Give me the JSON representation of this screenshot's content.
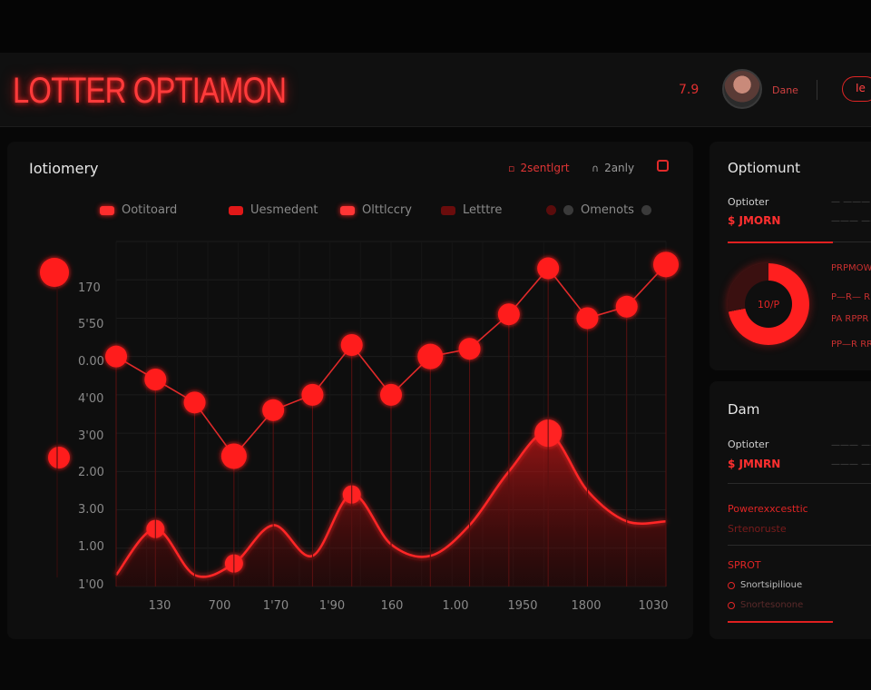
{
  "header": {
    "title": "LOTTER OPTIAMON",
    "count": "7.9",
    "user": "Dane",
    "action": "Ie"
  },
  "chart_panel": {
    "title": "Iotiomery",
    "controls": {
      "range_label": "2sentlgrt",
      "view_label": "2anly"
    }
  },
  "colors": {
    "accent": "#ff2a2a",
    "background": "#070707",
    "panel": "#0e0e0e",
    "muted": "#8a8a8a"
  },
  "chart_data": {
    "type": "line",
    "legend": [
      "Ootitoard",
      "Uesmedent",
      "Olttlccry",
      "Letttre",
      "Omenots"
    ],
    "y_ticks": [
      "170",
      "5'50",
      "0.00",
      "4'00",
      "3'00",
      "2.00",
      "3.00",
      "1.00",
      "1'00"
    ],
    "x_ticks": [
      "130",
      "700",
      "1'70",
      "1'90",
      "160",
      "1.00",
      "1950",
      "1800",
      "1030"
    ],
    "series": [
      {
        "name": "Ootitoard",
        "style": "line-markers",
        "x": [
          1,
          2,
          3,
          4,
          5,
          6,
          7,
          8,
          9,
          10,
          11,
          12,
          13,
          14,
          15
        ],
        "values": [
          6.0,
          5.4,
          4.8,
          3.4,
          4.6,
          5.0,
          6.3,
          5.0,
          6.0,
          6.2,
          7.1,
          8.3,
          7.0,
          7.3,
          8.4
        ]
      },
      {
        "name": "Uesmedent",
        "style": "area",
        "x": [
          1,
          2,
          3,
          4,
          5,
          6,
          7,
          8,
          9,
          10,
          11,
          12,
          13,
          14,
          15
        ],
        "values": [
          0.3,
          1.5,
          0.3,
          0.6,
          1.6,
          0.8,
          2.4,
          1.1,
          0.8,
          1.6,
          3.0,
          4.0,
          2.5,
          1.7,
          1.7
        ]
      }
    ],
    "ylim": [
      0,
      9
    ],
    "grid": true
  },
  "side_top": {
    "title": "Optiomunt",
    "label": "Optioter",
    "value": "$ JMORN",
    "faint1": "— ——— ——",
    "faint2": "——— ———",
    "donut_label": "10/P",
    "donut_fraction": 0.72,
    "red_notes": [
      "PRPMOWRON",
      "P—R— RPPRN",
      "PA RPPR PRNP",
      "PP—R RRNP"
    ]
  },
  "side_bottom": {
    "title": "Dam",
    "label": "Optioter",
    "value": "$ JMNRN",
    "faint1": "——— ——— —",
    "faint2": "——— ———",
    "red_text": "Powerexxcesttic",
    "red_sub": "Srtenoruste",
    "heading": "SPROT",
    "items": [
      "Snortsipilioue",
      "Snortesonone"
    ]
  }
}
